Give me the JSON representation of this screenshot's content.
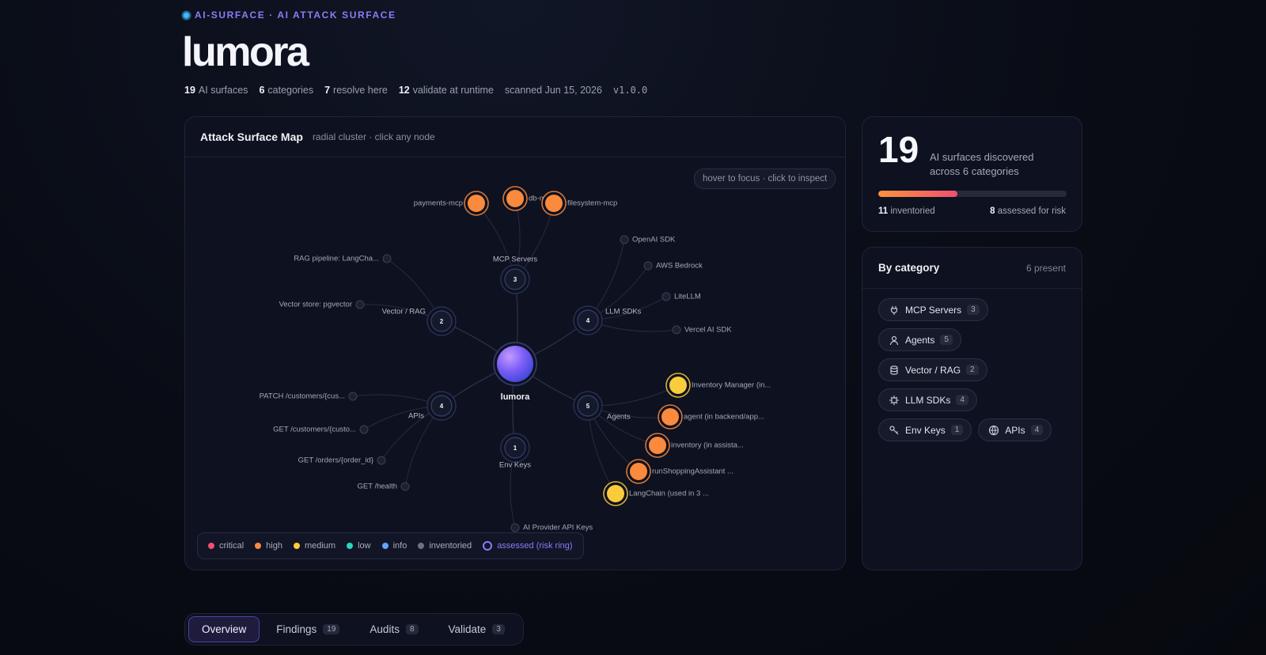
{
  "header": {
    "eyebrow": "AI-SURFACE · AI ATTACK SURFACE",
    "title": "lumora",
    "stats": [
      {
        "value": 19,
        "label": "AI surfaces"
      },
      {
        "value": 6,
        "label": "categories"
      },
      {
        "value": 7,
        "label": "resolve here"
      },
      {
        "value": 12,
        "label": "validate at runtime"
      }
    ],
    "scanned": "scanned Jun 15, 2026",
    "version": "v1.0.0"
  },
  "map": {
    "title": "Attack Surface Map",
    "subtitle": "radial cluster · click any node",
    "hint": "hover to focus · click to inspect",
    "root": "lumora",
    "clusters": [
      {
        "label": "MCP Servers",
        "count": 3,
        "nodes": [
          {
            "label": "payments-mcp",
            "color": "#fb8a3c"
          },
          {
            "label": "db-mcp",
            "color": "#fb8a3c"
          },
          {
            "label": "filesystem-mcp",
            "color": "#fb8a3c"
          }
        ]
      },
      {
        "label": "LLM SDKs",
        "count": 4,
        "nodes": [
          {
            "label": "OpenAI SDK"
          },
          {
            "label": "AWS Bedrock"
          },
          {
            "label": "LiteLLM"
          },
          {
            "label": "Vercel AI SDK"
          }
        ]
      },
      {
        "label": "Vector / RAG",
        "count": 2,
        "nodes": [
          {
            "label": "RAG pipeline: LangCha..."
          },
          {
            "label": "Vector store: pgvector"
          }
        ]
      },
      {
        "label": "APIs",
        "count": 4,
        "nodes": [
          {
            "label": "PATCH /customers/{cus..."
          },
          {
            "label": "GET /customers/{custo..."
          },
          {
            "label": "GET /orders/{order_id}"
          },
          {
            "label": "GET /health"
          }
        ]
      },
      {
        "label": "Env Keys",
        "count": 1,
        "nodes": [
          {
            "label": "AI Provider API Keys"
          }
        ]
      },
      {
        "label": "Agents",
        "count": 5,
        "nodes": [
          {
            "label": "Inventory Manager (in...",
            "color": "#facc3c"
          },
          {
            "label": "agent (in backend/app...",
            "color": "#fb8a3c"
          },
          {
            "label": "inventory (in assista...",
            "color": "#fb8a3c"
          },
          {
            "label": "runShoppingAssistant ...",
            "color": "#fb8a3c"
          },
          {
            "label": "LangChain (used in 3 ...",
            "color": "#facc3c"
          }
        ]
      }
    ],
    "legend": [
      {
        "label": "critical",
        "color": "#f0506e"
      },
      {
        "label": "high",
        "color": "#fb8a3c"
      },
      {
        "label": "medium",
        "color": "#facc3c"
      },
      {
        "label": "low",
        "color": "#2dd4bf"
      },
      {
        "label": "info",
        "color": "#60a5fa"
      },
      {
        "label": "inventoried",
        "color": "#6b7280"
      },
      {
        "label": "assessed (risk ring)",
        "color": "#8b7cf6",
        "ring": true
      }
    ]
  },
  "summary": {
    "count": 19,
    "line1": "AI surfaces discovered",
    "line2": "across 6 categories",
    "inventoried": 11,
    "inventoried_label": "inventoried",
    "assessed": 8,
    "assessed_label": "assessed for risk"
  },
  "categories": {
    "title": "By category",
    "present": "6 present",
    "items": [
      {
        "name": "MCP Servers",
        "count": 3
      },
      {
        "name": "Agents",
        "count": 5
      },
      {
        "name": "Vector / RAG",
        "count": 2
      },
      {
        "name": "LLM SDKs",
        "count": 4
      },
      {
        "name": "Env Keys",
        "count": 1
      },
      {
        "name": "APIs",
        "count": 4
      }
    ]
  },
  "tabs": [
    {
      "label": "Overview"
    },
    {
      "label": "Findings",
      "count": 19
    },
    {
      "label": "Audits",
      "count": 8
    },
    {
      "label": "Validate",
      "count": 3
    }
  ]
}
